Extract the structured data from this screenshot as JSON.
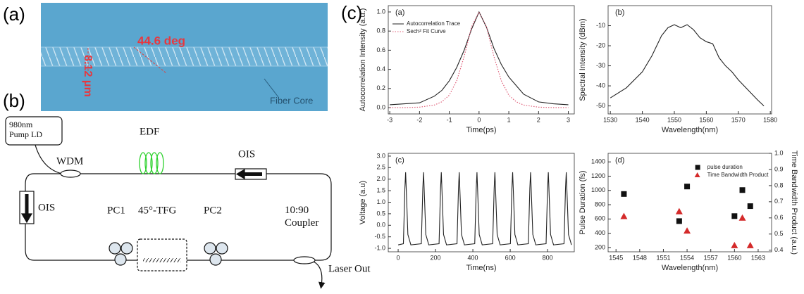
{
  "figure": {
    "panel_labels": [
      "(a)",
      "(b)",
      "(c)"
    ],
    "image": {
      "angle_label": "44.6 deg",
      "width_label": "8.12 μm",
      "core_label": "Fiber Core"
    },
    "diagram": {
      "pump": "980nm Pump LD",
      "edf": "EDF",
      "wdm": "WDM",
      "ois_right": "OIS",
      "ois_left": "OIS",
      "pc1": "PC1",
      "tfg": "45°-TFG",
      "pc2": "PC2",
      "coupler": "10:90 Coupler",
      "output": "Laser Out"
    }
  },
  "chart_data": [
    {
      "type": "line",
      "panel": "(a)",
      "xlabel": "Time(ps)",
      "ylabel": "Autocorrelation Intensity (a.u.)",
      "legend": "upper left",
      "xlim": [
        -3.05,
        3.2
      ],
      "xticks": [
        -3,
        -2,
        -1,
        0,
        1,
        2,
        3
      ],
      "ylim": [
        -0.066,
        1.066
      ],
      "yticks": [
        {
          "value": 0,
          "label": "0.0"
        },
        {
          "value": 0.2,
          "label": "0.2"
        },
        {
          "value": 0.4,
          "label": "0.4"
        },
        {
          "value": 0.6,
          "label": "0.6"
        },
        {
          "value": 0.8,
          "label": "0.8"
        },
        {
          "value": 1,
          "label": "1.0"
        }
      ],
      "x": [
        -3,
        -2.5,
        -2,
        -1.5,
        -1.25,
        -1,
        -0.75,
        -0.5,
        -0.25,
        0,
        0.25,
        0.5,
        0.75,
        1,
        1.25,
        1.5,
        2,
        2.5,
        3
      ],
      "series": [
        {
          "name": "Autocorrelation Trace",
          "color": "#222222",
          "style": "solid",
          "values": [
            0.03,
            0.04,
            0.05,
            0.12,
            0.18,
            0.28,
            0.42,
            0.6,
            0.82,
            1.0,
            0.84,
            0.62,
            0.45,
            0.32,
            0.23,
            0.14,
            0.06,
            0.04,
            0.03
          ]
        },
        {
          "name": "Sech² Fit Curve",
          "color": "#e0607a",
          "style": "dotted",
          "values": [
            0,
            0,
            0.005,
            0.027,
            0.061,
            0.13,
            0.28,
            0.535,
            0.845,
            1.0,
            0.845,
            0.535,
            0.28,
            0.13,
            0.061,
            0.027,
            0.005,
            0,
            0
          ]
        }
      ]
    },
    {
      "type": "line",
      "panel": "(b)",
      "xlabel": "Wavelength(nm)",
      "ylabel": "Spectral Intensity (dBm)",
      "xlim": [
        1529.3,
        1580.4
      ],
      "xticks": [
        1530,
        1540,
        1550,
        1560,
        1570,
        1580
      ],
      "ylim": [
        -54,
        0
      ],
      "yticks": [
        -50,
        -40,
        -30,
        -20,
        -10
      ],
      "x": [
        1530,
        1535,
        1540,
        1543,
        1546,
        1548,
        1550,
        1552,
        1554,
        1556,
        1558,
        1560,
        1562,
        1564,
        1566,
        1568,
        1570,
        1573,
        1576,
        1578
      ],
      "series": [
        {
          "color": "#222222",
          "style": "solid",
          "values": [
            -46,
            -41,
            -33,
            -25,
            -15,
            -11,
            -9.5,
            -11,
            -9.5,
            -12,
            -16,
            -18,
            -19,
            -26,
            -30,
            -33,
            -37,
            -42,
            -47,
            -50
          ]
        }
      ]
    },
    {
      "type": "line",
      "panel": "(c)",
      "xlabel": "Time(ns)",
      "ylabel": "Voltage (a.u)",
      "xlim": [
        -53,
        943
      ],
      "xticks": [
        0,
        200,
        400,
        600,
        800
      ],
      "ylim": [
        -1.15,
        3.12
      ],
      "yticks": [
        {
          "value": -1,
          "label": "-1.0"
        },
        {
          "value": -0.5,
          "label": "-0.5"
        },
        {
          "value": 0,
          "label": "0.0"
        },
        {
          "value": 0.5,
          "label": "0.5"
        },
        {
          "value": 1,
          "label": "1.0"
        },
        {
          "value": 1.5,
          "label": "1.5"
        },
        {
          "value": 2,
          "label": "2.0"
        },
        {
          "value": 2.5,
          "label": "2.5"
        },
        {
          "value": 3,
          "label": "3.0"
        }
      ],
      "x": [
        0,
        28,
        36,
        40,
        45,
        52,
        68,
        124,
        132,
        136,
        141,
        148,
        164,
        219,
        227,
        231,
        236,
        243,
        259,
        315,
        323,
        327,
        332,
        339,
        355,
        410,
        418,
        422,
        427,
        434,
        450,
        506,
        514,
        518,
        523,
        530,
        546,
        601,
        609,
        613,
        618,
        625,
        641,
        697,
        705,
        709,
        714,
        721,
        737,
        792,
        800,
        804,
        809,
        816,
        832,
        888,
        896,
        900,
        905,
        912,
        928
      ],
      "series": [
        {
          "color": "#222222",
          "style": "solid",
          "values": [
            -0.85,
            -0.8,
            1.6,
            2.3,
            1.2,
            -0.4,
            -0.85,
            -0.8,
            1.6,
            2.3,
            1.2,
            -0.4,
            -0.85,
            -0.8,
            1.6,
            2.3,
            1.2,
            -0.4,
            -0.85,
            -0.8,
            1.6,
            2.3,
            1.2,
            -0.4,
            -0.85,
            -0.8,
            1.6,
            2.3,
            1.2,
            -0.4,
            -0.85,
            -0.8,
            1.6,
            2.3,
            1.2,
            -0.4,
            -0.85,
            -0.8,
            1.6,
            2.3,
            1.2,
            -0.4,
            -0.85,
            -0.8,
            1.6,
            2.3,
            1.2,
            -0.4,
            -0.85,
            -0.8,
            1.6,
            2.3,
            1.2,
            -0.4,
            -0.85,
            -0.8,
            1.6,
            2.3,
            1.2,
            -0.4,
            -0.85
          ]
        }
      ]
    },
    {
      "type": "scatter",
      "panel": "(d)",
      "xlabel": "Wavelength(nm)",
      "ylabel": "Pulse Duration (fs)",
      "y2label": "Time Bandwidth Product (a.u.)",
      "legend": "upper right",
      "xlim": [
        1544,
        1564.7
      ],
      "xticks": [
        1545,
        1548,
        1551,
        1554,
        1557,
        1560,
        1563
      ],
      "ylim": [
        140,
        1520
      ],
      "yticks": [
        200,
        400,
        600,
        800,
        1000,
        1200,
        1400
      ],
      "y2lim": [
        0.39,
        1.0
      ],
      "y2ticks": [
        {
          "value": 0.4,
          "label": "0.4"
        },
        {
          "value": 0.5,
          "label": "0.5"
        },
        {
          "value": 0.6,
          "label": "0.6"
        },
        {
          "value": 0.7,
          "label": "0.7"
        },
        {
          "value": 0.8,
          "label": "0.8"
        },
        {
          "value": 0.9,
          "label": "0.9"
        },
        {
          "value": 1,
          "label": "1.0"
        }
      ],
      "x": [
        1546,
        1553,
        1554,
        1560,
        1561,
        1562
      ],
      "series": [
        {
          "name": "pulse duration",
          "color": "#111111",
          "marker": "square",
          "values": [
            950,
            570,
            1055,
            640,
            1005,
            780
          ]
        },
        {
          "name": "Time Bandwidth Product",
          "color": "#d42a2a",
          "marker": "triangle",
          "axis": "y2",
          "values": [
            0.61,
            0.64,
            0.52,
            0.43,
            0.6,
            0.43
          ]
        }
      ]
    }
  ]
}
